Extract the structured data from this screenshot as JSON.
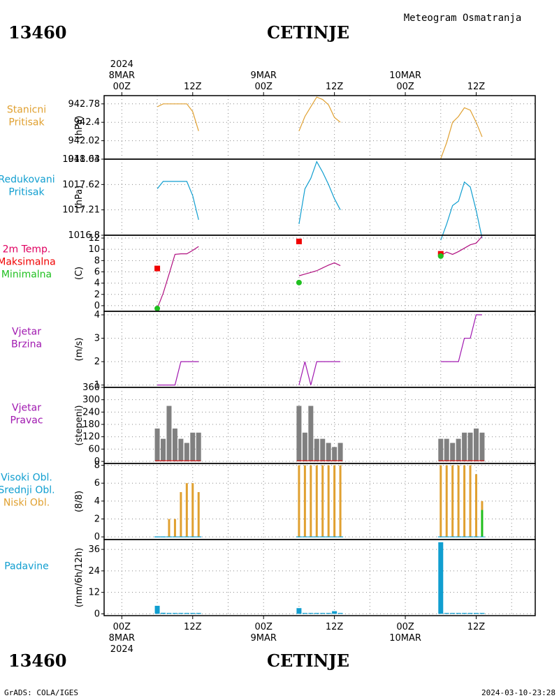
{
  "station_id": "13460",
  "station_name": "CETINJE",
  "meteogram_title": "Meteogram Osmatranja",
  "footer_left": "GrADS: COLA/IGES",
  "footer_right": "2024-03-10-23:28",
  "time_axis": {
    "top_labels": [
      {
        "hour": 0,
        "lines": [
          "2024",
          "8MAR",
          "00Z"
        ]
      },
      {
        "hour": 12,
        "lines": [
          "12Z"
        ]
      },
      {
        "hour": 24,
        "lines": [
          "9MAR",
          "00Z"
        ]
      },
      {
        "hour": 36,
        "lines": [
          "12Z"
        ]
      },
      {
        "hour": 48,
        "lines": [
          "10MAR",
          "00Z"
        ]
      },
      {
        "hour": 60,
        "lines": [
          "12Z"
        ]
      }
    ],
    "bottom_labels": [
      {
        "hour": 0,
        "lines": [
          "00Z",
          "8MAR",
          "2024"
        ]
      },
      {
        "hour": 12,
        "lines": [
          "12Z"
        ]
      },
      {
        "hour": 24,
        "lines": [
          "00Z",
          "9MAR"
        ]
      },
      {
        "hour": 36,
        "lines": [
          "12Z"
        ]
      },
      {
        "hour": 48,
        "lines": [
          "00Z",
          "10MAR"
        ]
      },
      {
        "hour": 60,
        "lines": [
          "12Z"
        ]
      }
    ],
    "xlim": [
      -3,
      70
    ]
  },
  "colors": {
    "pressure": "#e0a030",
    "reduced": "#109ed0",
    "tmax": "#f00000",
    "tmin": "#20c020",
    "temp_line": "#b01080",
    "wind": "#a018b0",
    "bars": "#808080",
    "clouds_low": "#e0a030",
    "clouds_mid": "#20c020",
    "clouds_high": "#109ed0",
    "precip": "#109ed0"
  },
  "panel_labels": {
    "p1": [
      "Stanicni",
      "Pritisak"
    ],
    "p2": [
      "Redukovani",
      "Pritisak"
    ],
    "p3": [
      "2m Temp.",
      "Maksimalna",
      "Minimalna"
    ],
    "p4": [
      "Vjetar",
      "Brzina"
    ],
    "p5": [
      "Vjetar",
      "Pravac"
    ],
    "p6": [
      "Visoki Obl.",
      "Srednji Obl.",
      "Niski Obl."
    ],
    "p7": [
      "Padavine"
    ]
  },
  "units": {
    "p1": "(hPa)",
    "p2": "(hPa)",
    "p3": "(C)",
    "p4": "(m/s)",
    "p5": "(stepeni)",
    "p6": "(8/8)",
    "p7": "(mm/6h/12h)"
  },
  "chart_data": [
    {
      "type": "line",
      "name": "station_pressure",
      "ylim": [
        941.64,
        942.95
      ],
      "yticks": [
        "942.78",
        "942.4",
        "942.02",
        "941.64"
      ],
      "grid": true,
      "segments": [
        {
          "x": [
            6,
            7,
            8,
            9,
            10,
            11,
            12,
            13
          ],
          "y": [
            942.72,
            942.78,
            942.78,
            942.78,
            942.78,
            942.78,
            942.62,
            942.22
          ]
        },
        {
          "x": [
            30,
            31,
            32,
            33,
            34,
            35,
            36,
            37
          ],
          "y": [
            942.22,
            942.52,
            942.72,
            942.92,
            942.87,
            942.76,
            942.5,
            942.4
          ]
        },
        {
          "x": [
            54,
            55,
            56,
            57,
            58,
            59,
            60,
            61
          ],
          "y": [
            941.65,
            941.98,
            942.4,
            942.52,
            942.7,
            942.65,
            942.4,
            942.1
          ]
        }
      ]
    },
    {
      "type": "line",
      "name": "reduced_pressure",
      "ylim": [
        1016.8,
        1018.03
      ],
      "yticks": [
        "1018.03",
        "1017.62",
        "1017.21",
        "1016.8"
      ],
      "grid": true,
      "segments": [
        {
          "x": [
            6,
            7,
            8,
            9,
            10,
            11,
            12,
            13
          ],
          "y": [
            1017.55,
            1017.67,
            1017.67,
            1017.67,
            1017.67,
            1017.67,
            1017.44,
            1017.05
          ]
        },
        {
          "x": [
            30,
            31,
            32,
            33,
            34,
            35,
            36,
            37
          ],
          "y": [
            1016.98,
            1017.55,
            1017.72,
            1017.99,
            1017.82,
            1017.62,
            1017.39,
            1017.21
          ]
        },
        {
          "x": [
            54,
            55,
            56,
            57,
            58,
            59,
            60,
            61
          ],
          "y": [
            1016.72,
            1016.98,
            1017.28,
            1017.35,
            1017.66,
            1017.58,
            1017.2,
            1016.75
          ]
        }
      ]
    },
    {
      "type": "line",
      "name": "temperature",
      "ylim": [
        -1,
        12.5
      ],
      "yticks": [
        "12",
        "10",
        "8",
        "6",
        "4",
        "2",
        "0"
      ],
      "grid": true,
      "segments": [
        {
          "x": [
            6,
            7,
            8,
            9,
            10,
            11,
            12,
            13
          ],
          "y": [
            -0.5,
            2.2,
            5.6,
            9.1,
            9.2,
            9.2,
            9.8,
            10.5
          ]
        },
        {
          "x": [
            30,
            31,
            32,
            33,
            34,
            35,
            36,
            37
          ],
          "y": [
            5.3,
            5.6,
            5.9,
            6.2,
            6.7,
            7.2,
            7.6,
            7.1
          ]
        },
        {
          "x": [
            54,
            55,
            56,
            57,
            58,
            59,
            60,
            61
          ],
          "y": [
            8.9,
            9.5,
            9.1,
            9.6,
            10.2,
            10.8,
            11.1,
            12.3
          ]
        }
      ],
      "tmax_points": [
        {
          "x": 6,
          "y": 6.6
        },
        {
          "x": 30,
          "y": 11.4
        },
        {
          "x": 54,
          "y": 9.2
        }
      ],
      "tmin_points": [
        {
          "x": 6,
          "y": -0.5
        },
        {
          "x": 30,
          "y": 4.1
        },
        {
          "x": 54,
          "y": 8.8
        }
      ]
    },
    {
      "type": "line",
      "name": "wind_speed",
      "ylim": [
        0.9,
        4.15
      ],
      "yticks": [
        "4",
        "3",
        "2",
        "1"
      ],
      "grid": true,
      "segments": [
        {
          "x": [
            6,
            7,
            8,
            9,
            10,
            11,
            12,
            13
          ],
          "y": [
            1,
            1,
            1,
            1,
            2,
            2,
            2,
            2
          ]
        },
        {
          "x": [
            30,
            31,
            32,
            33,
            34,
            35,
            36,
            37
          ],
          "y": [
            1,
            2,
            1,
            2,
            2,
            2,
            2,
            2
          ]
        },
        {
          "x": [
            54,
            55,
            56,
            57,
            58,
            59,
            60,
            61
          ],
          "y": [
            2,
            2,
            2,
            2,
            3,
            3,
            4,
            4
          ]
        }
      ]
    },
    {
      "type": "bar",
      "name": "wind_direction",
      "ylim": [
        -10,
        360
      ],
      "yticks": [
        "360",
        "300",
        "240",
        "180",
        "120",
        "60",
        "0"
      ],
      "grid": true,
      "x": [
        6,
        7,
        8,
        9,
        10,
        11,
        12,
        13,
        30,
        31,
        32,
        33,
        34,
        35,
        36,
        37,
        54,
        55,
        56,
        57,
        58,
        59,
        60,
        61
      ],
      "values": [
        160,
        110,
        270,
        160,
        110,
        90,
        140,
        140,
        270,
        140,
        270,
        110,
        110,
        90,
        70,
        90,
        110,
        110,
        90,
        110,
        140,
        140,
        160,
        140
      ]
    },
    {
      "type": "bar",
      "name": "cloud_cover",
      "ylim": [
        -0.3,
        8.2
      ],
      "yticks": [
        "8",
        "6",
        "4",
        "2",
        "0"
      ],
      "grid": true,
      "x": [
        6,
        7,
        8,
        9,
        10,
        11,
        12,
        13,
        30,
        31,
        32,
        33,
        34,
        35,
        36,
        37,
        54,
        55,
        56,
        57,
        58,
        59,
        60,
        61
      ],
      "series": [
        {
          "name": "Niski Obl.",
          "values": [
            0,
            0,
            2,
            2,
            5,
            6,
            6,
            5,
            8,
            8,
            8,
            8,
            8,
            8,
            8,
            8,
            8,
            8,
            8,
            8,
            8,
            8,
            7,
            4
          ]
        },
        {
          "name": "Srednji Obl.",
          "values": [
            0,
            0,
            0,
            0,
            0,
            0,
            0,
            0,
            0,
            0,
            0,
            0,
            0,
            0,
            0,
            0,
            0,
            0,
            0,
            0,
            0,
            0,
            0,
            3
          ]
        },
        {
          "name": "Visoki Obl.",
          "values": [
            0,
            0,
            0,
            0,
            0,
            0,
            0,
            0,
            0,
            0,
            0,
            0,
            0,
            0,
            0,
            0,
            0,
            0,
            0,
            0,
            0,
            0,
            0,
            0
          ]
        }
      ]
    },
    {
      "type": "bar",
      "name": "precipitation",
      "ylim": [
        -1,
        41.5
      ],
      "yticks": [
        "36",
        "24",
        "12",
        "0"
      ],
      "grid": true,
      "x": [
        6,
        7,
        8,
        9,
        10,
        11,
        12,
        13,
        30,
        31,
        32,
        33,
        34,
        35,
        36,
        37,
        54,
        55,
        56,
        57,
        58,
        59,
        60,
        61
      ],
      "values": [
        4.5,
        0.6,
        0.5,
        0.5,
        0.5,
        0.5,
        0.5,
        0.5,
        3.2,
        0.5,
        0.5,
        0.5,
        0.5,
        0.5,
        1.5,
        0.5,
        40,
        0.5,
        0.5,
        0.5,
        0.5,
        0.5,
        0.5,
        0.5
      ]
    }
  ]
}
